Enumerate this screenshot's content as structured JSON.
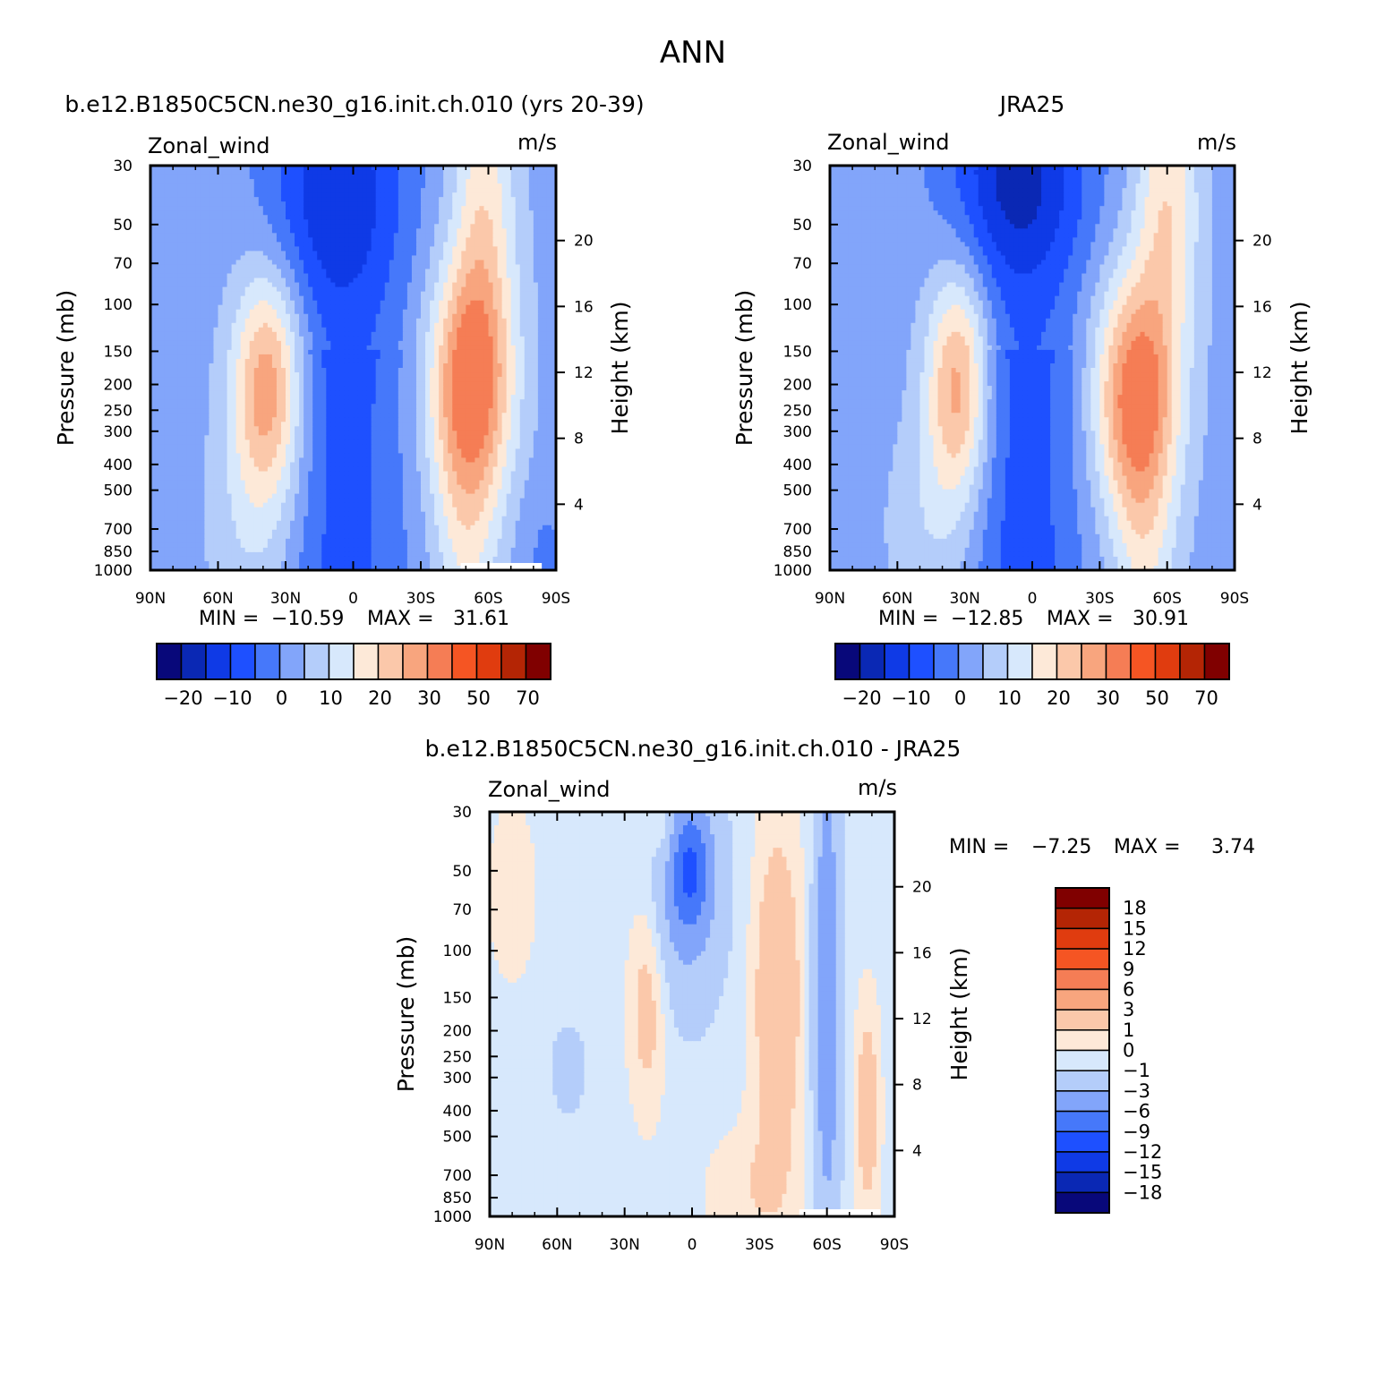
{
  "figure": {
    "title": "ANN"
  },
  "colors": {
    "ramp_full": [
      "#08087a",
      "#0a28b4",
      "#0f3ae6",
      "#1e50ff",
      "#4678fa",
      "#82a5fa",
      "#b4cdfa",
      "#d7e8fc",
      "#fde9d8",
      "#fbc8aa",
      "#f8a57e",
      "#f57d55",
      "#f55523",
      "#e03c0f",
      "#b42505",
      "#800000"
    ],
    "ramp_diff": [
      "#08087a",
      "#0a28b4",
      "#0f3ae6",
      "#1e50ff",
      "#4678fa",
      "#82a5fa",
      "#b4cdfa",
      "#d7e8fc",
      "#fde9d8",
      "#fbc8aa",
      "#f8a57e",
      "#f57d55",
      "#f55523",
      "#e03c0f",
      "#b42505",
      "#800000"
    ],
    "frame": "#000000",
    "missing": "#ffffff"
  },
  "chart_data": [
    {
      "type": "heatmap",
      "subtitle": "b.e12.B1850C5CN.ne30_g16.init.ch.010 (yrs 20-39)",
      "left_label": "Zonal_wind",
      "right_label": "m/s",
      "xlabel": "",
      "ylabel": "Pressure (mb)",
      "y2label": "Height (km)",
      "x_ticklabels": [
        "90N",
        "60N",
        "30N",
        "0",
        "30S",
        "60S",
        "90S"
      ],
      "y_ticks": [
        30,
        50,
        70,
        100,
        150,
        200,
        250,
        300,
        400,
        500,
        700,
        850,
        1000
      ],
      "y_ticklabels": [
        "30",
        "50",
        "70",
        "100",
        "150",
        "200",
        "250",
        "300",
        "400",
        "500",
        "700",
        "850",
        "1000"
      ],
      "y_scale": "log",
      "ylim": [
        1000,
        30
      ],
      "xlim": [
        "90N",
        "90S"
      ],
      "y2_ticks": [
        "4",
        "8",
        "12",
        "16",
        "20"
      ],
      "stats": {
        "min_label": "MIN =",
        "min": "-10.59",
        "max_label": "MAX =",
        "max": "31.61"
      },
      "colorbar": {
        "orientation": "horizontal",
        "ticklabels": [
          "-20",
          "-10",
          "0",
          "10",
          "20",
          "30",
          "50",
          "70"
        ],
        "levels": [
          -25,
          -20,
          -15,
          -10,
          -5,
          0,
          5,
          10,
          15,
          20,
          25,
          30,
          40,
          50,
          60,
          70,
          80
        ]
      },
      "jets": [
        {
          "lat": -55,
          "p": 200,
          "speed": 31.61
        },
        {
          "lat": 38,
          "p": 200,
          "speed": 26
        },
        {
          "lat": 12,
          "p": 50,
          "speed": -10.59
        }
      ]
    },
    {
      "type": "heatmap",
      "subtitle": "JRA25",
      "left_label": "Zonal_wind",
      "right_label": "m/s",
      "xlabel": "",
      "ylabel": "Pressure (mb)",
      "y2label": "Height (km)",
      "x_ticklabels": [
        "90N",
        "60N",
        "30N",
        "0",
        "30S",
        "60S",
        "90S"
      ],
      "y_ticks": [
        30,
        50,
        70,
        100,
        150,
        200,
        250,
        300,
        400,
        500,
        700,
        850,
        1000
      ],
      "y_ticklabels": [
        "30",
        "50",
        "70",
        "100",
        "150",
        "200",
        "250",
        "300",
        "400",
        "500",
        "700",
        "850",
        "1000"
      ],
      "y_scale": "log",
      "ylim": [
        1000,
        30
      ],
      "xlim": [
        "90N",
        "90S"
      ],
      "y2_ticks": [
        "4",
        "8",
        "12",
        "16",
        "20"
      ],
      "stats": {
        "min_label": "MIN =",
        "min": "-12.85",
        "max_label": "MAX =",
        "max": "30.91"
      },
      "colorbar": {
        "orientation": "horizontal",
        "ticklabels": [
          "-20",
          "-10",
          "0",
          "10",
          "20",
          "30",
          "50",
          "70"
        ],
        "levels": [
          -25,
          -20,
          -15,
          -10,
          -5,
          0,
          5,
          10,
          15,
          20,
          25,
          30,
          40,
          50,
          60,
          70,
          80
        ]
      },
      "jets": [
        {
          "lat": -32,
          "p": 200,
          "speed": 30.91
        },
        {
          "lat": 30,
          "p": 200,
          "speed": 25
        },
        {
          "lat": 12,
          "p": 40,
          "speed": -12.85
        }
      ]
    },
    {
      "type": "heatmap",
      "subtitle": "b.e12.B1850C5CN.ne30_g16.init.ch.010 - JRA25",
      "left_label": "Zonal_wind",
      "right_label": "m/s",
      "xlabel": "",
      "ylabel": "Pressure (mb)",
      "y2label": "Height (km)",
      "x_ticklabels": [
        "90N",
        "60N",
        "30N",
        "0",
        "30S",
        "60S",
        "90S"
      ],
      "y_ticks": [
        30,
        50,
        70,
        100,
        150,
        200,
        250,
        300,
        400,
        500,
        700,
        850,
        1000
      ],
      "y_ticklabels": [
        "30",
        "50",
        "70",
        "100",
        "150",
        "200",
        "250",
        "300",
        "400",
        "500",
        "700",
        "850",
        "1000"
      ],
      "y_scale": "log",
      "ylim": [
        1000,
        30
      ],
      "xlim": [
        "90N",
        "90S"
      ],
      "y2_ticks": [
        "4",
        "8",
        "12",
        "16",
        "20"
      ],
      "stats": {
        "min_label": "MIN =",
        "min": "-7.25",
        "max_label": "MAX =",
        "max": "3.74"
      },
      "colorbar": {
        "orientation": "vertical",
        "ticklabels": [
          "18",
          "15",
          "12",
          "9",
          "6",
          "3",
          "1",
          "0",
          "-1",
          "-3",
          "-6",
          "-9",
          "-12",
          "-15",
          "-18"
        ],
        "levels": [
          -21,
          -18,
          -15,
          -12,
          -9,
          -6,
          -3,
          -1,
          0,
          1,
          3,
          6,
          9,
          12,
          15,
          18,
          21
        ]
      },
      "features": [
        {
          "lat": 1,
          "p": 50,
          "value": -7.25
        },
        {
          "lat": -62,
          "p": 120,
          "value": -6
        },
        {
          "lat": -42,
          "p": 200,
          "value": 3.74
        }
      ]
    }
  ]
}
